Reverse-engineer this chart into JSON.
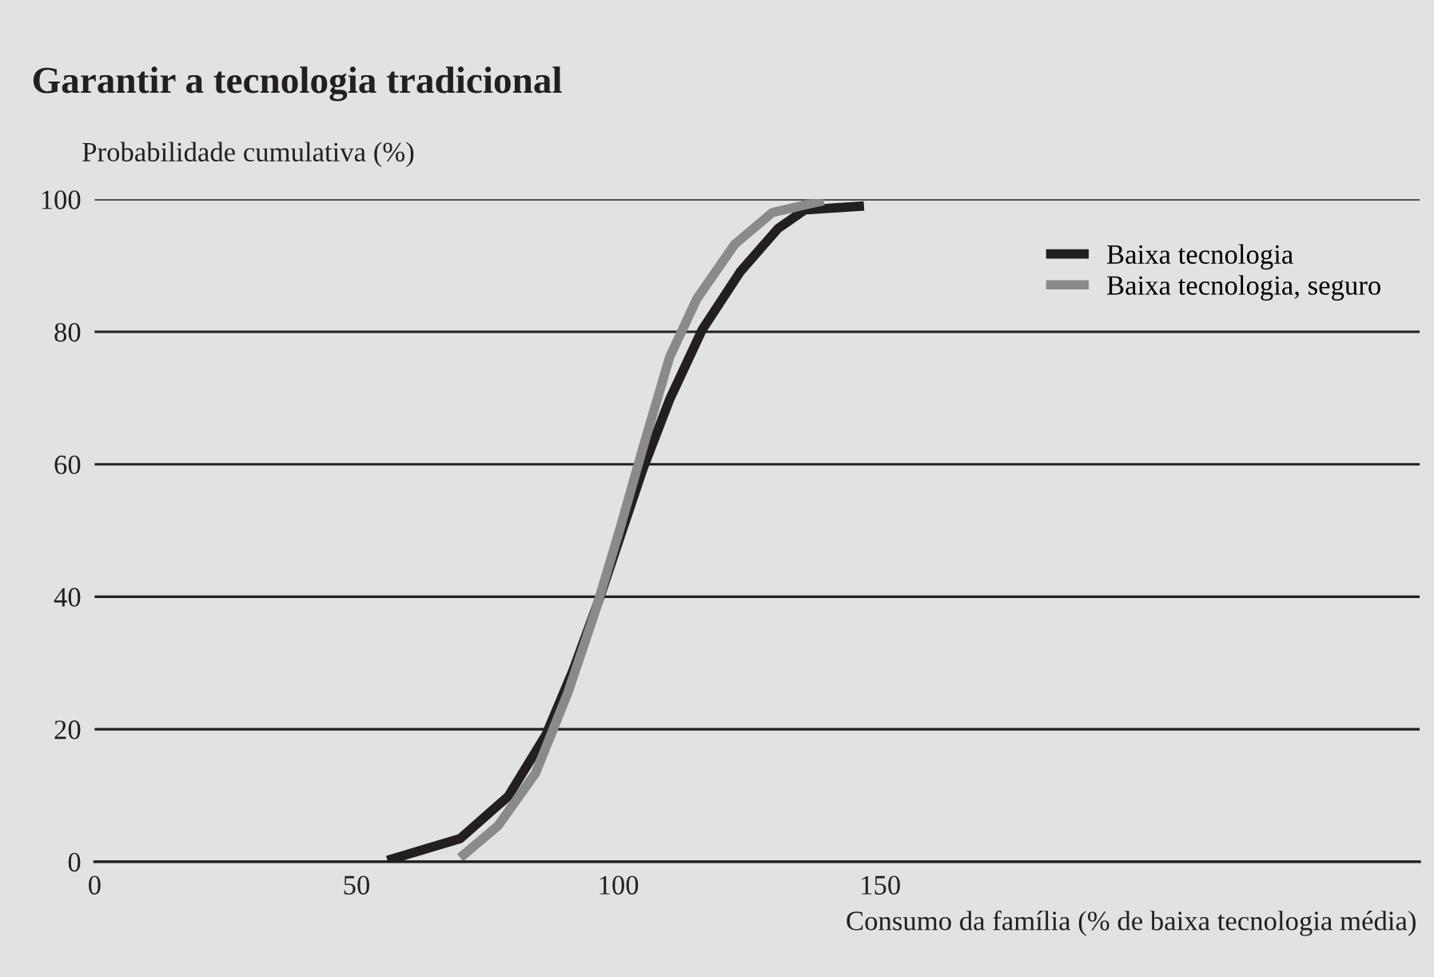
{
  "chart_data": {
    "type": "line",
    "title": "Garantir a tecnologia tradicional",
    "ylabel": "Probabilidade cumulativa (%)",
    "xlabel": "Consumo da família (% de baixa tecnologia média)",
    "xlim": [
      0,
      253
    ],
    "xticks": [
      0,
      50,
      100,
      150
    ],
    "ylim": [
      0,
      100
    ],
    "yticks": [
      0,
      20,
      40,
      60,
      80,
      100
    ],
    "grid": "y",
    "legend": "top right",
    "line_style": "solid",
    "series": [
      {
        "name": "Baixa tecnologia",
        "color": "#231f20",
        "x": [
          55.9,
          69.8,
          79.0,
          86.2,
          91.3,
          96.5,
          100.6,
          104.7,
          109.8,
          116,
          123.3,
          130.5,
          135.6,
          146.9
        ],
        "values": [
          0.2,
          3.5,
          9.9,
          19.2,
          28.8,
          40,
          49.7,
          59.3,
          69.8,
          80.3,
          89.1,
          95.6,
          98.4,
          99
        ]
      },
      {
        "name": "Baixa tecnologia, seguro",
        "color": "#8a8a8c",
        "x": [
          69.8,
          77,
          84.2,
          90.4,
          95.5,
          100.1,
          104.7,
          109.8,
          115,
          122.2,
          129.4,
          139.2
        ],
        "values": [
          0.6,
          5.4,
          13.4,
          25.6,
          37.6,
          49.7,
          62.5,
          76.2,
          85,
          93.2,
          98,
          99.8
        ]
      }
    ]
  }
}
